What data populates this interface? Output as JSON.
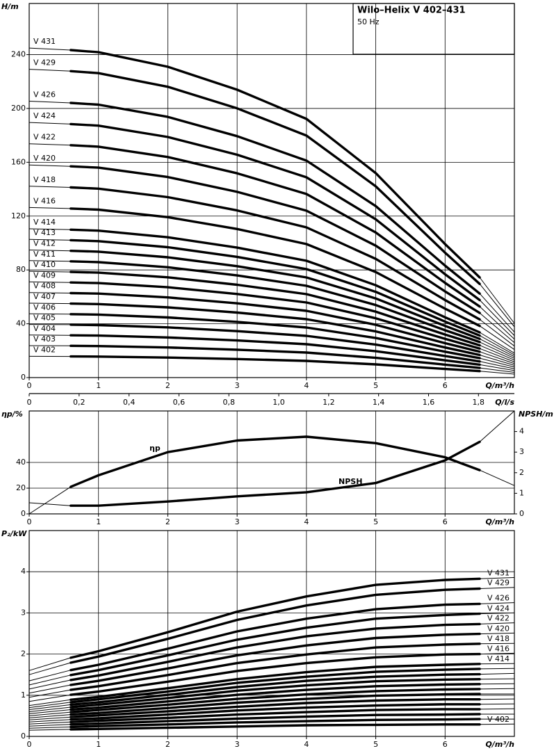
{
  "chart_data": [
    {
      "type": "line",
      "title": "Wilo–Helix V 402–431",
      "subtitle": "50 Hz",
      "y_label": "H/m",
      "x_label": "Q/m³/h",
      "x2_label": "Q/l/s",
      "color": "#000000",
      "grid": true,
      "xlim": [
        0,
        7
      ],
      "xticks": [
        0,
        1,
        2,
        3,
        4,
        5,
        6
      ],
      "ylim": [
        0,
        278
      ],
      "yticks": [
        0,
        40,
        80,
        120,
        160,
        200,
        240
      ],
      "x2lim": [
        0,
        1.944
      ],
      "x2ticks": [
        0,
        {
          "value": 0.2,
          "label": "0,2"
        },
        {
          "value": 0.4,
          "label": "0,4"
        },
        {
          "value": 0.6,
          "label": "0,6"
        },
        {
          "value": 0.8,
          "label": "0,8"
        },
        {
          "value": 1.0,
          "label": "1,0"
        },
        {
          "value": 1.2,
          "label": "1,2"
        },
        {
          "value": 1.4,
          "label": "1,4"
        },
        {
          "value": 1.6,
          "label": "1,6"
        },
        {
          "value": 1.8,
          "label": "1,8"
        }
      ],
      "x": [
        0,
        0.6,
        1,
        2,
        3,
        4,
        5,
        6,
        6.5,
        7
      ],
      "series": [
        {
          "name": "V 402",
          "values": [
            15.8,
            15.7,
            15.6,
            14.9,
            13.8,
            12.4,
            9.8,
            6.4,
            4.8,
            2.6
          ]
        },
        {
          "name": "V 403",
          "values": [
            23.7,
            23.6,
            23.4,
            22.4,
            20.7,
            18.6,
            14.7,
            9.6,
            7.2,
            3.9
          ]
        },
        {
          "name": "V 404",
          "values": [
            31.6,
            31.4,
            31.2,
            29.8,
            27.6,
            24.8,
            19.6,
            12.8,
            9.6,
            5.2
          ]
        },
        {
          "name": "V 405",
          "values": [
            39.5,
            39.3,
            39,
            37.3,
            34.5,
            31,
            24.5,
            16,
            12,
            6.5
          ]
        },
        {
          "name": "V 406",
          "values": [
            47.4,
            47.1,
            46.8,
            44.7,
            41.4,
            37.2,
            29.4,
            19.2,
            14.4,
            7.8
          ]
        },
        {
          "name": "V 407",
          "values": [
            55.3,
            55,
            54.6,
            52.2,
            48.3,
            43.4,
            34.3,
            22.4,
            16.8,
            9.1
          ]
        },
        {
          "name": "V 408",
          "values": [
            63.2,
            62.8,
            62.4,
            59.6,
            55.2,
            49.6,
            39.2,
            25.6,
            19.2,
            10.4
          ]
        },
        {
          "name": "V 409",
          "values": [
            71.1,
            70.7,
            70.2,
            67.1,
            62.1,
            55.8,
            44.1,
            28.8,
            21.6,
            11.7
          ]
        },
        {
          "name": "V 410",
          "values": [
            79,
            78.5,
            78,
            74.5,
            69,
            62,
            49,
            32,
            24,
            13
          ]
        },
        {
          "name": "V 411",
          "values": [
            86.9,
            86.4,
            85.8,
            82,
            75.9,
            68.2,
            53.9,
            35.2,
            26.4,
            14.3
          ]
        },
        {
          "name": "V 412",
          "values": [
            94.8,
            94.2,
            93.6,
            89.4,
            82.8,
            74.4,
            58.8,
            38.4,
            28.8,
            15.6
          ]
        },
        {
          "name": "V 413",
          "values": [
            102.7,
            102.1,
            101.4,
            96.9,
            89.7,
            80.6,
            63.7,
            41.6,
            31.2,
            16.9
          ]
        },
        {
          "name": "V 414",
          "values": [
            110.6,
            109.9,
            109.2,
            104.3,
            96.6,
            86.8,
            68.6,
            44.8,
            33.6,
            18.2
          ]
        },
        {
          "name": "V 416",
          "values": [
            126.4,
            125.6,
            124.8,
            119.2,
            110.4,
            99.2,
            78.4,
            51.2,
            38.4,
            20.8
          ]
        },
        {
          "name": "V 418",
          "values": [
            142.2,
            141.3,
            140.4,
            134.1,
            124.2,
            111.6,
            88.2,
            57.6,
            43.2,
            23.4
          ]
        },
        {
          "name": "V 420",
          "values": [
            158,
            157,
            156,
            149,
            138,
            124,
            98,
            64,
            48,
            26
          ]
        },
        {
          "name": "V 422",
          "values": [
            173.8,
            172.7,
            171.6,
            163.9,
            151.8,
            136.4,
            107.8,
            70.4,
            52.8,
            28.6
          ]
        },
        {
          "name": "V 424",
          "values": [
            189.6,
            188.4,
            187.2,
            178.8,
            165.6,
            148.8,
            117.6,
            76.8,
            57.6,
            31.2
          ]
        },
        {
          "name": "V 426",
          "values": [
            205.4,
            204.1,
            202.8,
            193.7,
            179.4,
            161.2,
            127.4,
            83.2,
            62.4,
            33.8
          ]
        },
        {
          "name": "V 429",
          "values": [
            229.1,
            227.7,
            226.2,
            216.1,
            200.1,
            179.8,
            142.1,
            92.8,
            69.6,
            37.7
          ]
        },
        {
          "name": "V 431",
          "values": [
            244.9,
            243.4,
            241.8,
            231,
            213.9,
            192.2,
            151.9,
            99.2,
            74.4,
            40.3
          ]
        }
      ]
    },
    {
      "type": "line",
      "y_label": "ηp/%",
      "y2_label": "NPSH/m",
      "x_label": "Q/m³/h",
      "color": "#000000",
      "grid": true,
      "xlim": [
        0,
        7
      ],
      "xticks": [
        0,
        1,
        2,
        3,
        4,
        5,
        6
      ],
      "ylim": [
        0,
        80
      ],
      "yticks": [
        0,
        20,
        40
      ],
      "y2lim": [
        0,
        5
      ],
      "y2ticks": [
        0,
        1,
        2,
        3,
        4
      ],
      "x": [
        0,
        0.6,
        1,
        2,
        3,
        4,
        5,
        6,
        6.5,
        7
      ],
      "series": [
        {
          "name": "ηp",
          "values": [
            0,
            21,
            30,
            48,
            57,
            60,
            55,
            44,
            34,
            22
          ]
        },
        {
          "name": "NPSH",
          "axis": "y2",
          "values": [
            0.54,
            0.4,
            0.4,
            0.6,
            0.85,
            1.05,
            1.5,
            2.6,
            3.5,
            5
          ]
        }
      ]
    },
    {
      "type": "line",
      "y_label": "P₂/kW",
      "x_label": "Q/m³/h",
      "color": "#000000",
      "grid": true,
      "xlim": [
        0,
        7
      ],
      "xticks": [
        0,
        1,
        2,
        3,
        4,
        5,
        6
      ],
      "ylim": [
        0,
        5
      ],
      "yticks": [
        0,
        1,
        2,
        3,
        4
      ],
      "x": [
        0,
        0.6,
        1,
        2,
        3,
        4,
        5,
        6,
        6.5,
        7
      ],
      "series": [
        {
          "name": "V 402",
          "values": [
            0.15,
            0.17,
            0.18,
            0.21,
            0.24,
            0.27,
            0.28,
            0.29,
            0.29,
            0.3
          ]
        },
        {
          "name": null,
          "values": [
            0.2,
            0.23,
            0.25,
            0.29,
            0.34,
            0.37,
            0.4,
            0.41,
            0.42,
            0.42
          ]
        },
        {
          "name": null,
          "values": [
            0.25,
            0.29,
            0.31,
            0.37,
            0.43,
            0.48,
            0.52,
            0.53,
            0.54,
            0.54
          ]
        },
        {
          "name": null,
          "values": [
            0.3,
            0.35,
            0.38,
            0.45,
            0.53,
            0.59,
            0.64,
            0.66,
            0.66,
            0.67
          ]
        },
        {
          "name": null,
          "values": [
            0.35,
            0.41,
            0.44,
            0.53,
            0.63,
            0.7,
            0.75,
            0.78,
            0.78,
            0.79
          ]
        },
        {
          "name": null,
          "values": [
            0.4,
            0.47,
            0.51,
            0.61,
            0.72,
            0.81,
            0.87,
            0.9,
            0.9,
            0.91
          ]
        },
        {
          "name": null,
          "values": [
            0.45,
            0.53,
            0.57,
            0.69,
            0.82,
            0.91,
            0.99,
            1.02,
            1.03,
            1.03
          ]
        },
        {
          "name": null,
          "values": [
            0.5,
            0.59,
            0.64,
            0.77,
            0.91,
            1.02,
            1.1,
            1.14,
            1.15,
            1.16
          ]
        },
        {
          "name": null,
          "values": [
            0.55,
            0.65,
            0.7,
            0.85,
            1.01,
            1.13,
            1.22,
            1.26,
            1.27,
            1.28
          ]
        },
        {
          "name": null,
          "values": [
            0.6,
            0.71,
            0.77,
            0.93,
            1.11,
            1.24,
            1.34,
            1.38,
            1.39,
            1.4
          ]
        },
        {
          "name": null,
          "values": [
            0.65,
            0.77,
            0.83,
            1.01,
            1.2,
            1.35,
            1.45,
            1.5,
            1.51,
            1.53
          ]
        },
        {
          "name": null,
          "values": [
            0.7,
            0.83,
            0.9,
            1.09,
            1.3,
            1.45,
            1.57,
            1.62,
            1.64,
            1.65
          ]
        },
        {
          "name": "V 414",
          "values": [
            0.75,
            0.89,
            0.96,
            1.17,
            1.39,
            1.56,
            1.69,
            1.74,
            1.76,
            1.77
          ]
        },
        {
          "name": "V 416",
          "values": [
            0.85,
            1.01,
            1.09,
            1.33,
            1.59,
            1.78,
            1.92,
            1.99,
            2,
            2.02
          ]
        },
        {
          "name": "V 418",
          "values": [
            0.95,
            1.13,
            1.22,
            1.49,
            1.78,
            1.99,
            2.16,
            2.23,
            2.25,
            2.26
          ]
        },
        {
          "name": "V 420",
          "values": [
            1.05,
            1.25,
            1.35,
            1.65,
            1.97,
            2.21,
            2.39,
            2.47,
            2.49,
            2.51
          ]
        },
        {
          "name": "V 422",
          "values": [
            1.15,
            1.37,
            1.48,
            1.81,
            2.16,
            2.43,
            2.62,
            2.71,
            2.73,
            2.76
          ]
        },
        {
          "name": "V 424",
          "values": [
            1.25,
            1.49,
            1.61,
            1.97,
            2.35,
            2.64,
            2.86,
            2.95,
            2.98,
            3
          ]
        },
        {
          "name": "V 426",
          "values": [
            1.35,
            1.61,
            1.74,
            2.13,
            2.55,
            2.86,
            3.09,
            3.2,
            3.22,
            3.25
          ]
        },
        {
          "name": "V 429",
          "values": [
            1.5,
            1.79,
            1.94,
            2.37,
            2.83,
            3.18,
            3.44,
            3.56,
            3.59,
            3.62
          ]
        },
        {
          "name": "V 431",
          "values": [
            1.6,
            1.91,
            2.07,
            2.53,
            3.03,
            3.4,
            3.68,
            3.8,
            3.83,
            3.86
          ]
        }
      ]
    }
  ]
}
